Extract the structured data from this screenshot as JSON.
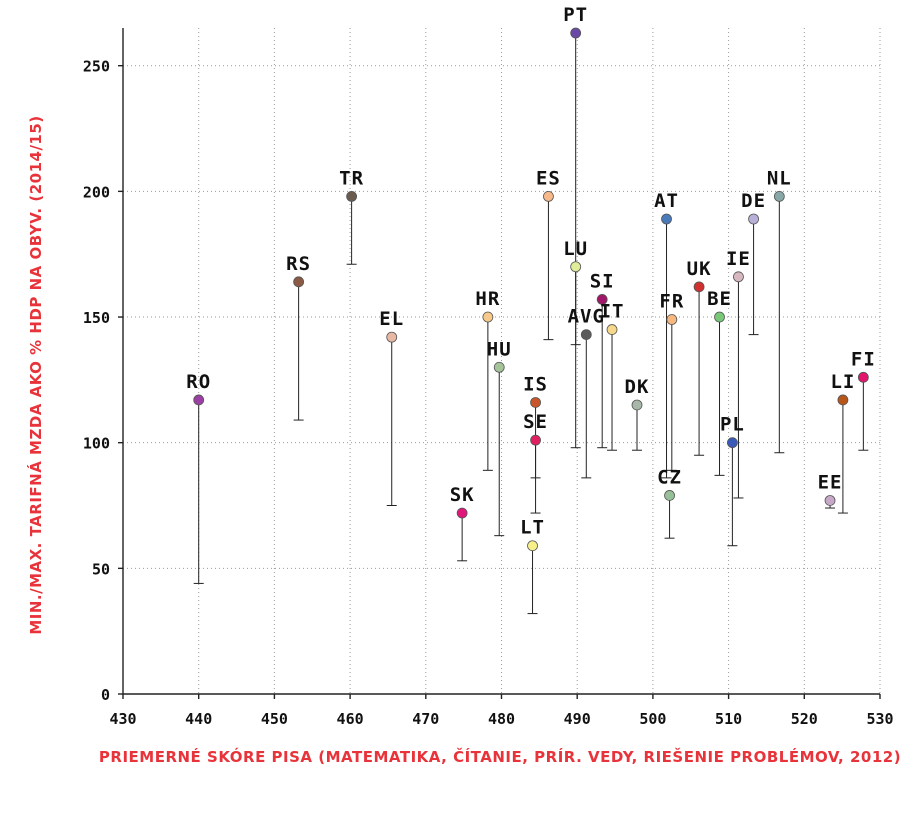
{
  "chart_data": {
    "type": "scatter",
    "xlabel": "PRIEMERNÉ SKÓRE PISA (MATEMATIKA, ČÍTANIE, PRÍR. VEDY, RIEŠENIE PROBLÉMOV, 2012)",
    "ylabel": "MIN./MAX. TARIFNÁ MZDA AKO % HDP NA OBYV. (2014/15)",
    "xlim": [
      430,
      530
    ],
    "ylim": [
      0,
      265
    ],
    "xticks": [
      430,
      440,
      450,
      460,
      470,
      480,
      490,
      500,
      510,
      520,
      530
    ],
    "yticks": [
      0,
      50,
      100,
      150,
      200,
      250
    ],
    "grid": true,
    "points": [
      {
        "label": "RO",
        "x": 440.0,
        "y": 117,
        "min": 44,
        "color": "#9b3fa4"
      },
      {
        "label": "RS",
        "x": 453.2,
        "y": 164,
        "min": 109,
        "color": "#8a5a44"
      },
      {
        "label": "TR",
        "x": 460.2,
        "y": 198,
        "min": 171,
        "color": "#6b5a4e"
      },
      {
        "label": "EL",
        "x": 465.5,
        "y": 142,
        "min": 75,
        "color": "#e8b8a4"
      },
      {
        "label": "SK",
        "x": 474.8,
        "y": 72,
        "min": 53,
        "color": "#e0177a"
      },
      {
        "label": "HR",
        "x": 478.2,
        "y": 150,
        "min": 89,
        "color": "#f7c98a"
      },
      {
        "label": "HU",
        "x": 479.7,
        "y": 130,
        "min": 63,
        "color": "#a6c49a"
      },
      {
        "label": "IS",
        "x": 484.5,
        "y": 116,
        "min": 86,
        "color": "#c8562a"
      },
      {
        "label": "SE",
        "x": 484.5,
        "y": 101,
        "min": 72,
        "color": "#e02060"
      },
      {
        "label": "LT",
        "x": 484.1,
        "y": 59,
        "min": 32,
        "color": "#f7f08a"
      },
      {
        "label": "ES",
        "x": 486.2,
        "y": 198,
        "min": 141,
        "color": "#f7b88a"
      },
      {
        "label": "PT",
        "x": 489.8,
        "y": 263,
        "min": 139,
        "color": "#6a4aa4"
      },
      {
        "label": "LU",
        "x": 489.8,
        "y": 170,
        "min": 98,
        "color": "#e0ec98"
      },
      {
        "label": "AVG",
        "x": 491.2,
        "y": 143,
        "min": 86,
        "color": "#5a5a5a"
      },
      {
        "label": "SI",
        "x": 493.3,
        "y": 157,
        "min": 98,
        "color": "#a0176a"
      },
      {
        "label": "IT",
        "x": 494.6,
        "y": 145,
        "min": 97,
        "color": "#f7d88a"
      },
      {
        "label": "DK",
        "x": 497.9,
        "y": 115,
        "min": 97,
        "color": "#a8b8a8"
      },
      {
        "label": "AT",
        "x": 501.8,
        "y": 189,
        "min": 86,
        "color": "#4a7ab8"
      },
      {
        "label": "CZ",
        "x": 502.2,
        "y": 79,
        "min": 62,
        "color": "#98c098"
      },
      {
        "label": "FR",
        "x": 502.5,
        "y": 149,
        "min": 89,
        "color": "#f7b880"
      },
      {
        "label": "UK",
        "x": 506.1,
        "y": 162,
        "min": 95,
        "color": "#d03030"
      },
      {
        "label": "BE",
        "x": 508.8,
        "y": 150,
        "min": 87,
        "color": "#78c878"
      },
      {
        "label": "PL",
        "x": 510.5,
        "y": 100,
        "min": 59,
        "color": "#3a5ab8"
      },
      {
        "label": "IE",
        "x": 511.3,
        "y": 166,
        "min": 78,
        "color": "#d8b8c0"
      },
      {
        "label": "DE",
        "x": 513.3,
        "y": 189,
        "min": 143,
        "color": "#b8b0d8"
      },
      {
        "label": "NL",
        "x": 516.7,
        "y": 198,
        "min": 96,
        "color": "#88a8a8"
      },
      {
        "label": "EE",
        "x": 523.4,
        "y": 77,
        "min": 74,
        "color": "#c8a8c8"
      },
      {
        "label": "LI",
        "x": 525.1,
        "y": 117,
        "min": 72,
        "color": "#b8561a"
      },
      {
        "label": "FI",
        "x": 527.8,
        "y": 126,
        "min": 97,
        "color": "#e0176a"
      }
    ]
  }
}
